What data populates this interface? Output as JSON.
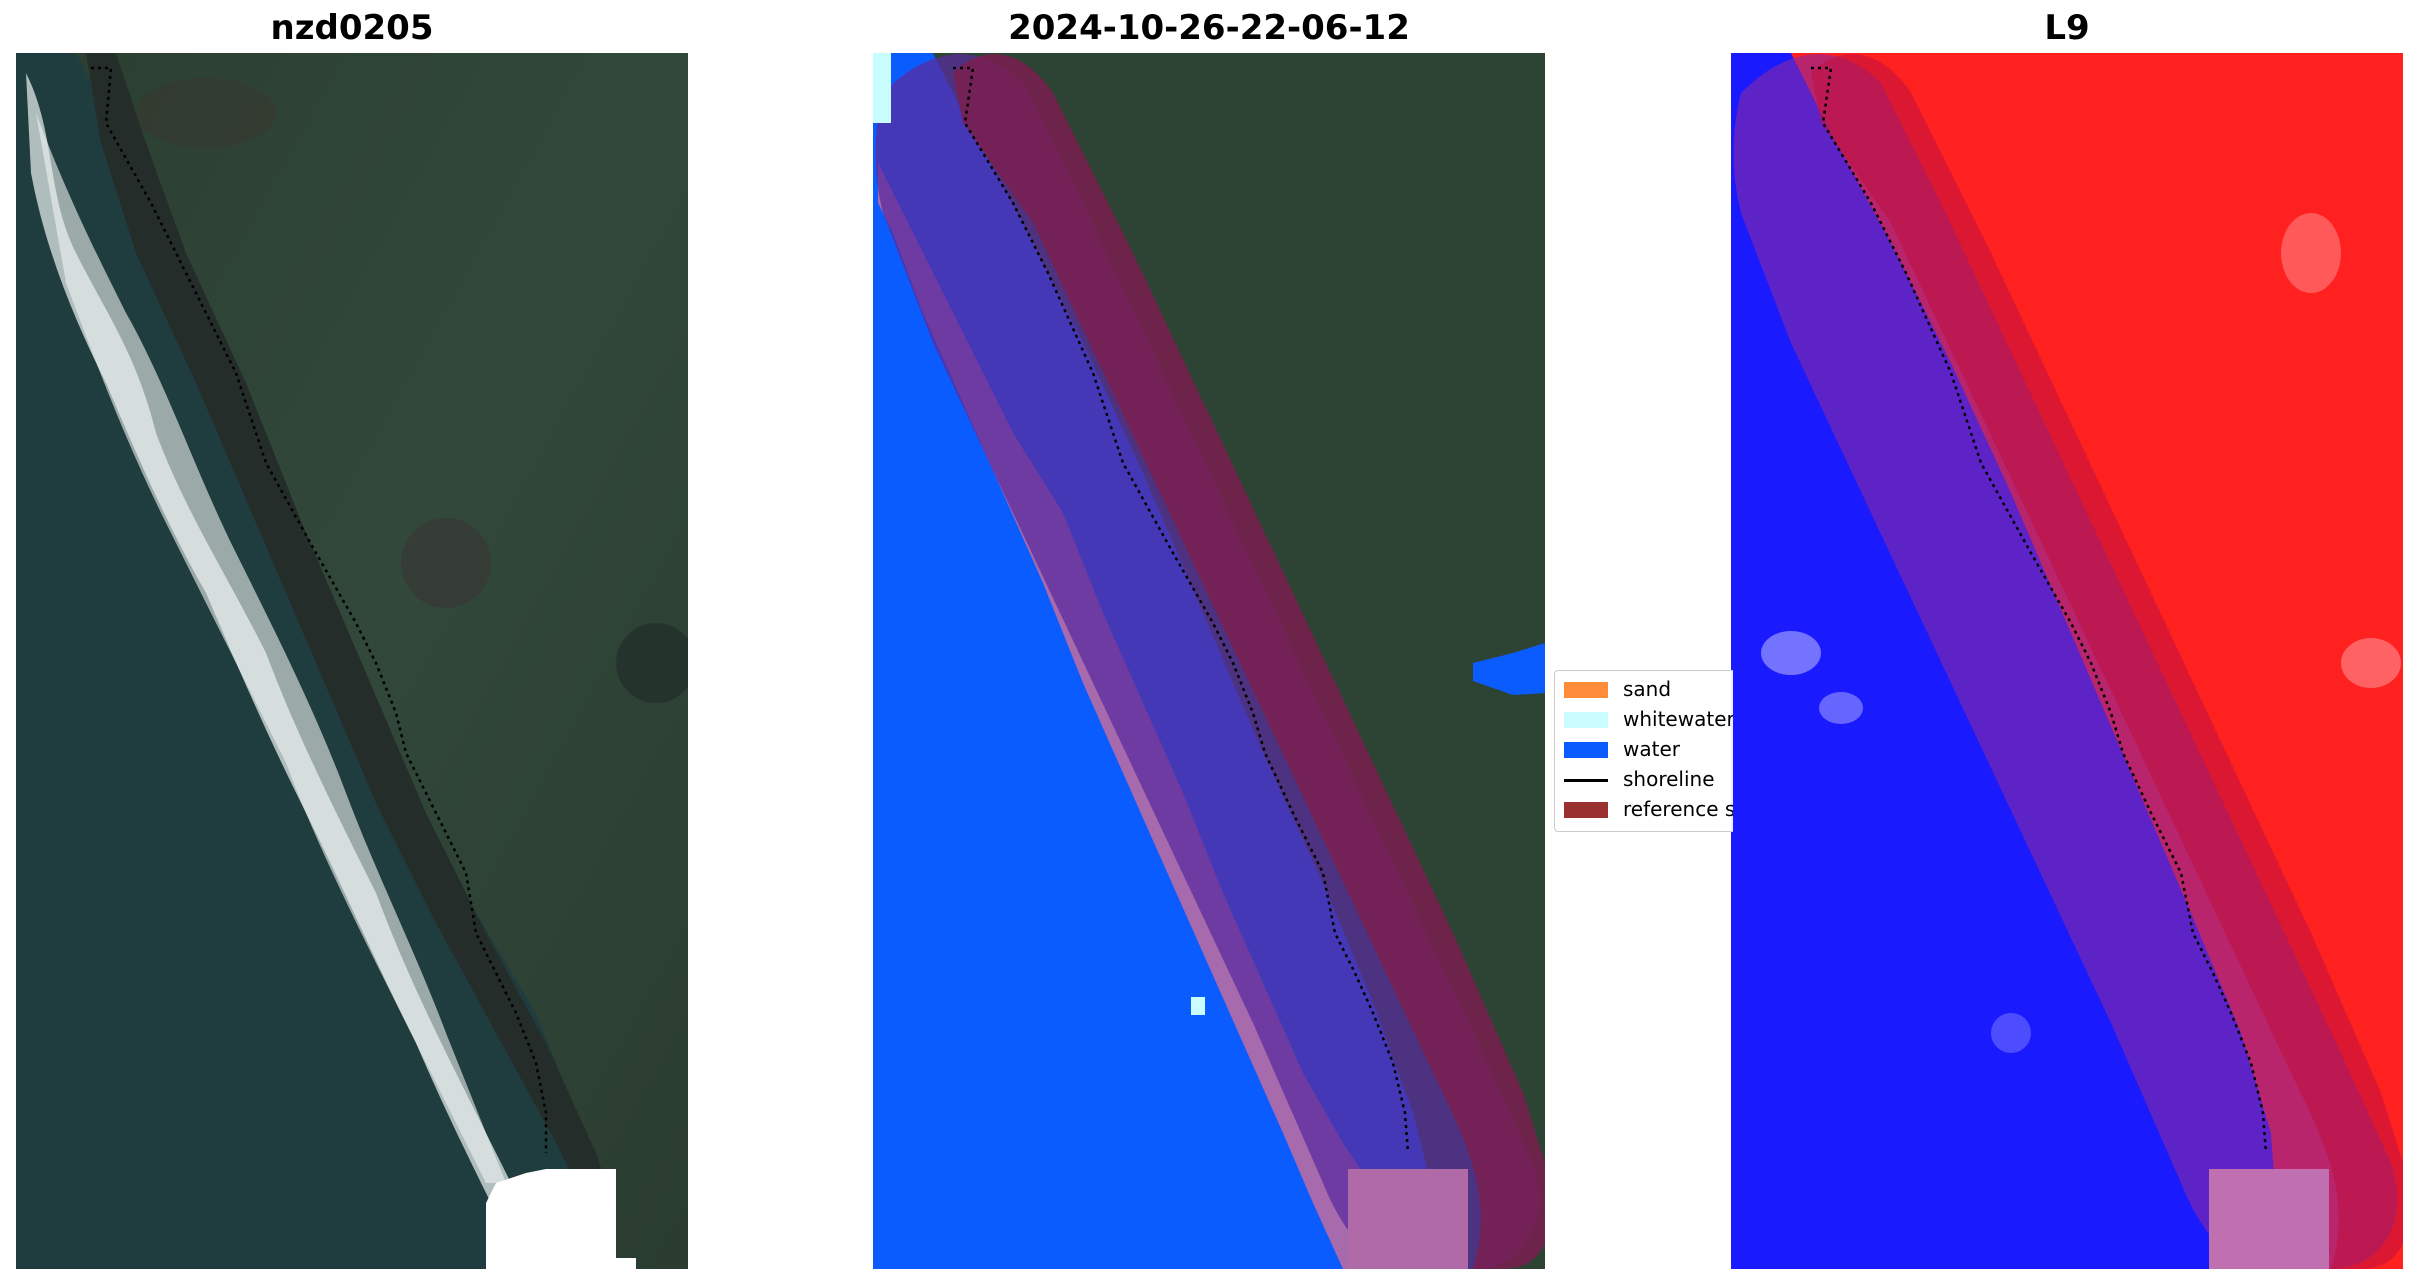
{
  "panels": [
    {
      "title": "nzd0205",
      "icon": "satellite-rgb-image"
    },
    {
      "title": "2024-10-26-22-06-12",
      "icon": "classified-image"
    },
    {
      "title": "L9",
      "icon": "water-index-image"
    }
  ],
  "legend": {
    "items": [
      {
        "label": "sand",
        "color": "#ff8c3a",
        "kind": "patch"
      },
      {
        "label": "whitewater",
        "color": "#c8fcff",
        "kind": "patch"
      },
      {
        "label": "water",
        "color": "#0a5cff",
        "kind": "patch"
      },
      {
        "label": "shoreline",
        "color": "#000000",
        "kind": "line"
      },
      {
        "label": "reference shoreline buffer",
        "color": "#9b3030",
        "kind": "patch"
      }
    ]
  },
  "colors": {
    "land": "#2e4333",
    "sea": "#1f3d3f",
    "surf": "#dfe6e6",
    "water_class": "#0a5cff",
    "buffer": "#7a1f4f",
    "index_land": "#ff2020",
    "index_water": "#1a1aff"
  }
}
